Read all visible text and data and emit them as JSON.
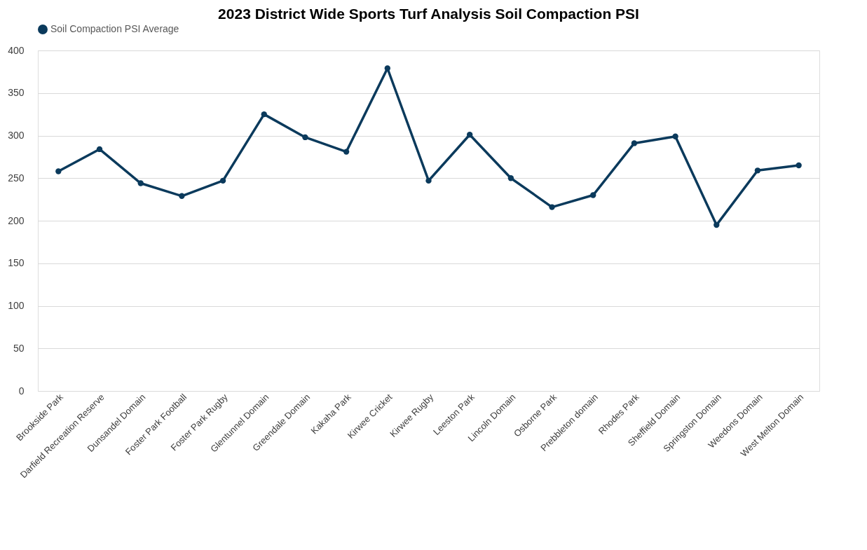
{
  "chart_data": {
    "type": "line",
    "title": "2023 District Wide Sports Turf Analysis Soil Compaction PSI",
    "categories": [
      "Brookside Park",
      "Darfield Recreation Reserve",
      "Dunsandel Domain",
      "Foster Park Football",
      "Foster Park Rugby",
      "Glentunnel Domain",
      "Greendale Domain",
      "Kakaha Park",
      "Kirwee Cricket",
      "Kirwee Rugby",
      "Leeston Park",
      "Lincoln Domain",
      "Osborne Park",
      "Prebbleton domain",
      "Rhodes Park",
      "Sheffield Domain",
      "Springston Domain",
      "Weedons Domain",
      "West Melton Domain"
    ],
    "series": [
      {
        "name": "Soil Compaction PSI Average",
        "color": "#0b3a5c",
        "values": [
          258,
          284,
          244,
          229,
          247,
          325,
          298,
          281,
          379,
          247,
          301,
          250,
          216,
          230,
          291,
          299,
          195,
          259,
          265
        ]
      }
    ],
    "ylim": [
      0,
      400
    ],
    "yticks": [
      0,
      50,
      100,
      150,
      200,
      250,
      300,
      350,
      400
    ],
    "grid": "y",
    "legend": "top",
    "marker": "circle",
    "line_style": "solid"
  }
}
